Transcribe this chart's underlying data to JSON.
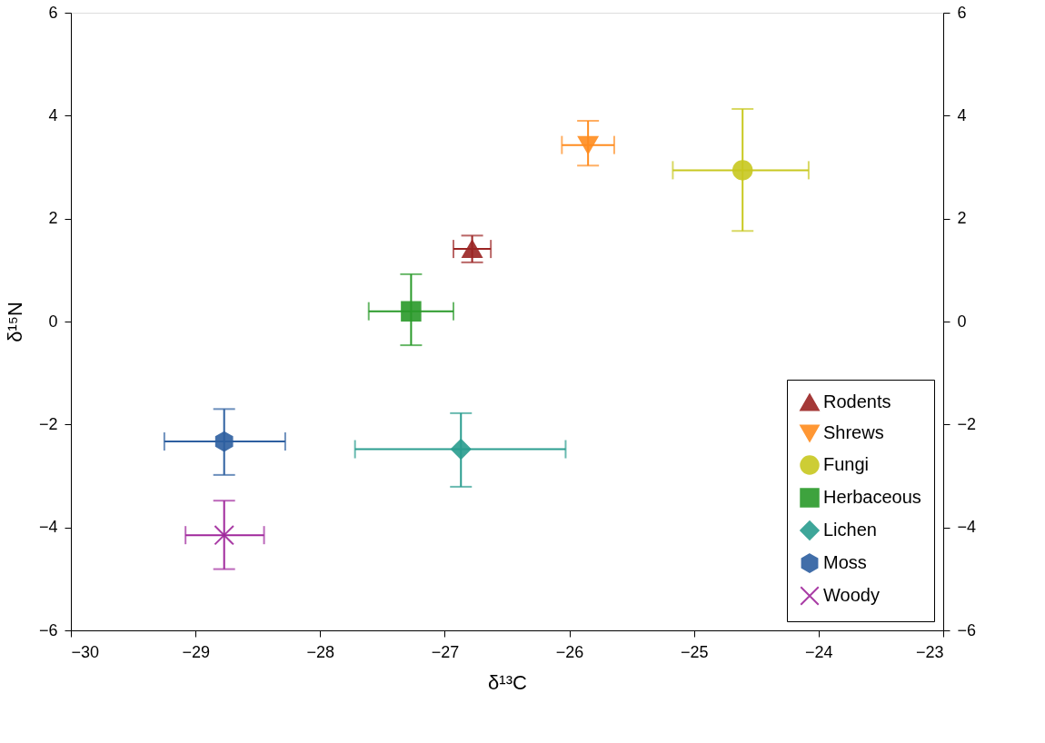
{
  "chart_data": {
    "type": "scatter",
    "xlabel": "δ¹³C",
    "ylabel": "δ¹⁵N",
    "xlim": [
      -30,
      -23
    ],
    "xticks": [
      -30,
      -29,
      -28,
      -27,
      -26,
      -25,
      -24,
      -23
    ],
    "ylim": [
      -6,
      6
    ],
    "yticks": [
      -6,
      -4,
      -2,
      0,
      2,
      4,
      6
    ],
    "y2lim": [
      -6,
      6
    ],
    "y2ticks": [
      -6,
      -4,
      -2,
      0,
      2,
      4,
      6
    ],
    "grid": false,
    "legend": "bottom right",
    "series": [
      {
        "name": "Rodents",
        "color": "#9b2423",
        "marker": "triangle",
        "x": [
          -26.78
        ],
        "values": [
          1.41
        ],
        "errors": [
          [
            1.15,
            1.67
          ]
        ],
        "xerrors": [
          [
            -26.93,
            -26.63
          ]
        ]
      },
      {
        "name": "Shrews",
        "color": "#ff8c1f",
        "marker": "triangle-down",
        "x": [
          -25.85
        ],
        "values": [
          3.43
        ],
        "errors": [
          [
            3.03,
            3.9
          ]
        ],
        "xerrors": [
          [
            -26.06,
            -25.64
          ]
        ]
      },
      {
        "name": "Fungi",
        "color": "#c8c820",
        "marker": "circle",
        "x": [
          -24.61
        ],
        "values": [
          2.94
        ],
        "errors": [
          [
            1.76,
            4.13
          ]
        ],
        "xerrors": [
          [
            -25.17,
            -24.08
          ]
        ]
      },
      {
        "name": "Herbaceous",
        "color": "#2a9a2a",
        "marker": "square",
        "x": [
          -27.27
        ],
        "values": [
          0.2
        ],
        "errors": [
          [
            -0.46,
            0.92
          ]
        ],
        "xerrors": [
          [
            -27.61,
            -26.93
          ]
        ]
      },
      {
        "name": "Lichen",
        "color": "#2a9d8f",
        "marker": "diamond",
        "x": [
          -26.87
        ],
        "values": [
          -2.48
        ],
        "errors": [
          [
            -3.21,
            -1.78
          ]
        ],
        "xerrors": [
          [
            -27.72,
            -26.03
          ]
        ]
      },
      {
        "name": "Moss",
        "color": "#2d5fa0",
        "x": [
          -28.77
        ],
        "values": [
          -2.33
        ],
        "errors": [
          [
            -2.98,
            -1.7
          ]
        ],
        "xerrors": [
          [
            -29.25,
            -28.28
          ]
        ]
      },
      {
        "name": "Woody",
        "color": "#a0289c",
        "marker": "cross",
        "x": [
          -28.77
        ],
        "values": [
          -4.15
        ],
        "errors": [
          [
            -4.81,
            -3.48
          ]
        ],
        "xerrors": [
          [
            -29.08,
            -28.45
          ]
        ]
      }
    ]
  }
}
